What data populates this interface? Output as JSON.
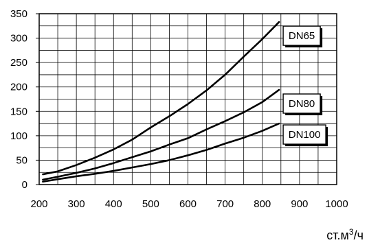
{
  "chart_data": {
    "type": "line",
    "xlim": [
      200,
      1000
    ],
    "ylim": [
      0,
      350
    ],
    "xticks": [
      200,
      300,
      400,
      500,
      600,
      700,
      800,
      900,
      1000
    ],
    "yticks": [
      0,
      50,
      100,
      150,
      200,
      250,
      300,
      350
    ],
    "xgrid_step": 50,
    "ygrid_step": 25,
    "grid": true,
    "xlabel_unit": {
      "main": "ст.м",
      "sup": "3",
      "tail": "/ч"
    },
    "series": [
      {
        "name": "DN65",
        "x": [
          210,
          250,
          300,
          350,
          400,
          450,
          500,
          550,
          600,
          650,
          700,
          750,
          800,
          845
        ],
        "y": [
          21,
          27,
          40,
          55,
          72,
          92,
          117,
          140,
          165,
          193,
          225,
          262,
          298,
          333
        ]
      },
      {
        "name": "DN80",
        "x": [
          210,
          250,
          300,
          350,
          400,
          450,
          500,
          550,
          600,
          650,
          700,
          750,
          800,
          845
        ],
        "y": [
          10,
          16,
          24,
          33,
          44,
          56,
          68,
          82,
          95,
          113,
          130,
          148,
          169,
          194
        ]
      },
      {
        "name": "DN100",
        "x": [
          210,
          250,
          300,
          350,
          400,
          450,
          500,
          550,
          600,
          650,
          700,
          750,
          800,
          845
        ],
        "y": [
          6,
          11,
          17,
          22,
          28,
          35,
          42,
          50,
          60,
          71,
          84,
          96,
          110,
          125
        ]
      }
    ]
  }
}
